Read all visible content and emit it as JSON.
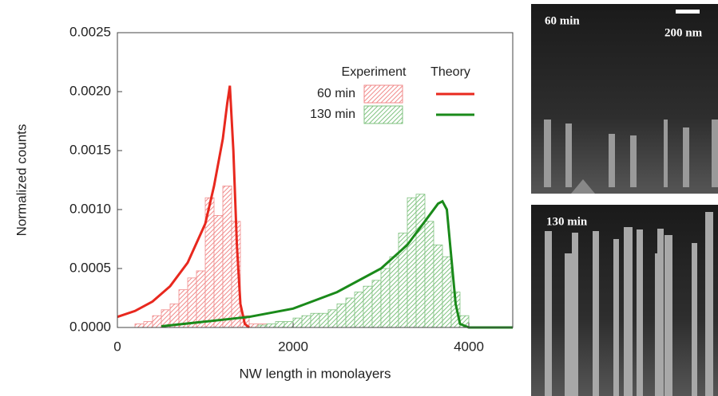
{
  "chart_data": {
    "type": "histogram",
    "xlabel": "NW length in monolayers",
    "ylabel": "Normalized counts",
    "xlim": [
      0,
      4500
    ],
    "xticks": [
      0,
      2000,
      4000
    ],
    "ylim": [
      0,
      0.0025
    ],
    "yticks": [
      {
        "value": 0,
        "label": "0.0000"
      },
      0.0005,
      {
        "value": 0.001,
        "label": "0.0010"
      },
      0.0015,
      {
        "value": 0.002,
        "label": "0.0020"
      },
      0.0025
    ],
    "legend_headers": [
      "Experiment",
      "Theory"
    ],
    "series": [
      {
        "name": "60 min",
        "color": "#e8281e",
        "hist_color": "#f08a8a",
        "bins": [
          200,
          300,
          400,
          500,
          600,
          700,
          800,
          900,
          1000,
          1100,
          1200,
          1300,
          1400,
          1500,
          1600,
          1700,
          1800,
          1900,
          2000,
          2100
        ],
        "counts": [
          3e-05,
          5e-05,
          0.0001,
          0.00015,
          0.0002,
          0.00032,
          0.00042,
          0.00048,
          0.0011,
          0.00095,
          0.0012,
          0.0009,
          0.0001,
          3e-05,
          3e-05,
          2e-05,
          2e-05,
          2e-05,
          2e-05
        ],
        "theory_x": [
          0,
          200,
          400,
          600,
          800,
          1000,
          1100,
          1200,
          1250,
          1280,
          1320,
          1360,
          1400,
          1450,
          1500
        ],
        "theory_y": [
          9e-05,
          0.00014,
          0.00022,
          0.00035,
          0.00055,
          0.00088,
          0.0012,
          0.0016,
          0.0019,
          0.00205,
          0.0015,
          0.0007,
          0.0002,
          3e-05,
          0
        ]
      },
      {
        "name": "130 min",
        "color": "#1a8a1a",
        "hist_color": "#7fc27f",
        "bins": [
          1600,
          1700,
          1800,
          1900,
          2000,
          2100,
          2200,
          2300,
          2400,
          2500,
          2600,
          2700,
          2800,
          2900,
          3000,
          3100,
          3200,
          3300,
          3400,
          3500,
          3600,
          3700,
          3800,
          3900,
          4000
        ],
        "counts": [
          2e-05,
          3e-05,
          5e-05,
          5e-05,
          8e-05,
          0.0001,
          0.00012,
          0.00012,
          0.00015,
          0.0002,
          0.00025,
          0.0003,
          0.00035,
          0.0004,
          0.0005,
          0.0006,
          0.0008,
          0.0011,
          0.00113,
          0.0009,
          0.0007,
          0.0006,
          0.0003,
          0.0001
        ],
        "theory_x": [
          500,
          1000,
          1500,
          2000,
          2500,
          3000,
          3300,
          3500,
          3650,
          3700,
          3750,
          3800,
          3850,
          3900,
          4000,
          4500
        ],
        "theory_y": [
          1e-05,
          5e-05,
          9e-05,
          0.00016,
          0.0003,
          0.0005,
          0.0007,
          0.0009,
          0.00105,
          0.00107,
          0.001,
          0.0006,
          0.0002,
          3e-05,
          0,
          0
        ]
      }
    ]
  },
  "images": [
    {
      "label": "60 min",
      "scale": "200 nm"
    },
    {
      "label": "130 min"
    }
  ]
}
